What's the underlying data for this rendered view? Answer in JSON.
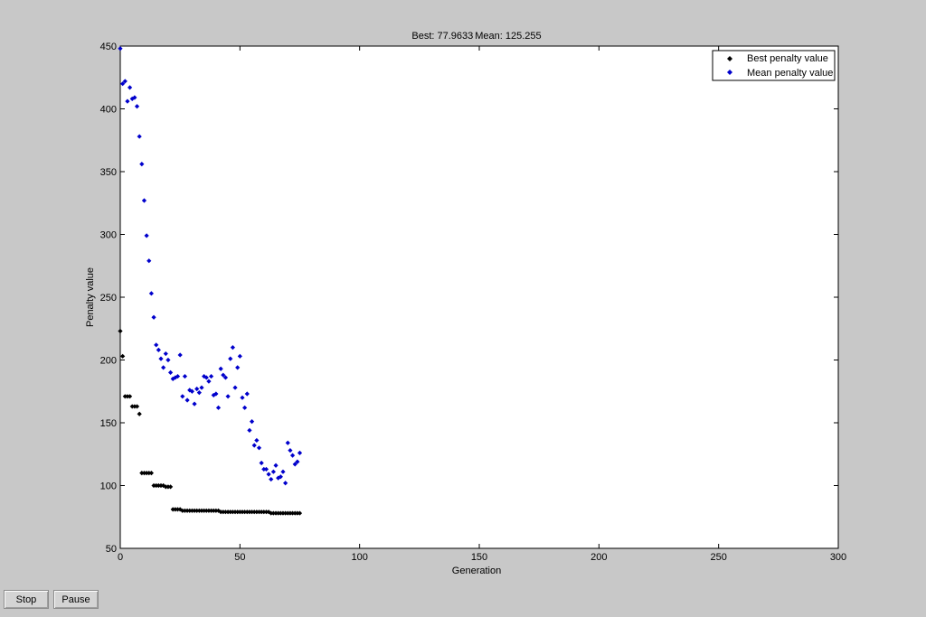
{
  "chart_data": {
    "type": "scatter",
    "title": "Best: 77.9633 Mean: 125.255",
    "title_best": "Best: 77.9633",
    "title_mean": "Mean: 125.255",
    "xlabel": "Generation",
    "ylabel": "Penalty value",
    "xlim": [
      0,
      300
    ],
    "ylim": [
      50,
      450
    ],
    "xticks": [
      0,
      50,
      100,
      150,
      200,
      250,
      300
    ],
    "yticks": [
      50,
      100,
      150,
      200,
      250,
      300,
      350,
      400,
      450
    ],
    "grid": false,
    "legend_position": "top-right",
    "series": [
      {
        "name": "Best penalty value",
        "color": "#000000",
        "marker": "diamond",
        "x": [
          0,
          1,
          2,
          3,
          4,
          5,
          6,
          7,
          8,
          9,
          10,
          11,
          12,
          13,
          14,
          15,
          16,
          17,
          18,
          19,
          20,
          21,
          22,
          23,
          24,
          25,
          26,
          27,
          28,
          29,
          30,
          31,
          32,
          33,
          34,
          35,
          36,
          37,
          38,
          39,
          40,
          41,
          42,
          43,
          44,
          45,
          46,
          47,
          48,
          49,
          50,
          51,
          52,
          53,
          54,
          55,
          56,
          57,
          58,
          59,
          60,
          61,
          62,
          63,
          64,
          65,
          66,
          67,
          68,
          69,
          70,
          71,
          72,
          73,
          74,
          75
        ],
        "y": [
          223,
          203,
          171,
          171,
          171,
          163,
          163,
          163,
          157,
          110,
          110,
          110,
          110,
          110,
          100,
          100,
          100,
          100,
          100,
          99,
          99,
          99,
          81,
          81,
          81,
          81,
          80,
          80,
          80,
          80,
          80,
          80,
          80,
          80,
          80,
          80,
          80,
          80,
          80,
          80,
          80,
          80,
          79,
          79,
          79,
          79,
          79,
          79,
          79,
          79,
          79,
          79,
          79,
          79,
          79,
          79,
          79,
          79,
          79,
          79,
          79,
          79,
          79,
          78,
          78,
          78,
          78,
          78,
          78,
          78,
          78,
          78,
          78,
          78,
          78,
          78
        ]
      },
      {
        "name": "Mean penalty value",
        "color": "#0000cc",
        "marker": "diamond",
        "x": [
          0,
          1,
          2,
          3,
          4,
          5,
          6,
          7,
          8,
          9,
          10,
          11,
          12,
          13,
          14,
          15,
          16,
          17,
          18,
          19,
          20,
          21,
          22,
          23,
          24,
          25,
          26,
          27,
          28,
          29,
          30,
          31,
          32,
          33,
          34,
          35,
          36,
          37,
          38,
          39,
          40,
          41,
          42,
          43,
          44,
          45,
          46,
          47,
          48,
          49,
          50,
          51,
          52,
          53,
          54,
          55,
          56,
          57,
          58,
          59,
          60,
          61,
          62,
          63,
          64,
          65,
          66,
          67,
          68,
          69,
          70,
          71,
          72,
          73,
          74,
          75
        ],
        "y": [
          448,
          420,
          422,
          406,
          417,
          408,
          409,
          402,
          378,
          356,
          327,
          299,
          279,
          253,
          234,
          212,
          208,
          201,
          194,
          205,
          200,
          190,
          185,
          186,
          187,
          204,
          171,
          187,
          168,
          176,
          175,
          165,
          177,
          174,
          178,
          187,
          186,
          183,
          187,
          172,
          173,
          162,
          193,
          188,
          186,
          171,
          201,
          210,
          178,
          194,
          203,
          170,
          162,
          173,
          144,
          151,
          132,
          136,
          130,
          118,
          113,
          113,
          109,
          105,
          111,
          116,
          106,
          107,
          111,
          102,
          134,
          128,
          124,
          117,
          119,
          126
        ]
      }
    ]
  },
  "controls": {
    "stop_label": "Stop",
    "pause_label": "Pause"
  }
}
